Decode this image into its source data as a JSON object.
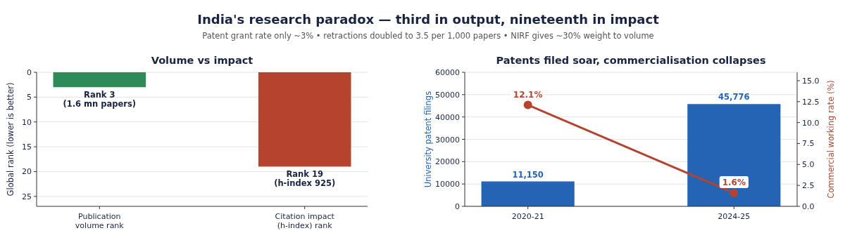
{
  "chart_data": [
    {
      "type": "other",
      "title": "India's research paradox — third in output, nineteenth in impact",
      "subtitle": "Patent grant rate only ~3%  •  retractions doubled to 3.5 per 1,000 papers  •  NIRF gives ~30% weight to volume"
    },
    {
      "type": "bar",
      "title": "Volume vs impact",
      "ylabel": "Global rank (lower is better)",
      "categories": [
        "Publication\nvolume rank",
        "Citation impact\n(h-index) rank"
      ],
      "values": [
        3,
        19
      ],
      "colors": [
        "#2e8b57",
        "#b5442e"
      ],
      "value_labels": [
        "Rank 3\n(1.6 mn papers)",
        "Rank 19\n(h-index 925)"
      ],
      "ylim": [
        27,
        0
      ],
      "yticks": [
        0,
        5,
        10,
        15,
        20,
        25
      ],
      "grid": "y"
    },
    {
      "type": "bar",
      "title": "Patents filed soar, commercialisation collapses",
      "ylabel": "University patent filings",
      "y2label": "Commercial working rate (%)",
      "categories": [
        "2020-21",
        "2024-25"
      ],
      "series": [
        {
          "type": "bar",
          "color": "#2563b5",
          "values": [
            11150,
            45776
          ],
          "value_labels": [
            "11,150",
            "45,776"
          ]
        },
        {
          "type": "line",
          "axis": "y2",
          "color": "#b5442e",
          "values": [
            12.1,
            1.6
          ],
          "value_labels": [
            "12.1%",
            "1.6%"
          ],
          "marker": "circle"
        }
      ],
      "ylim": [
        0,
        60000
      ],
      "yticks": [
        0,
        10000,
        20000,
        30000,
        40000,
        50000,
        60000
      ],
      "y2lim": [
        0,
        16
      ],
      "y2ticks": [
        {
          "value": 0,
          "label": "0.0"
        },
        {
          "value": 2.5,
          "label": "2.5"
        },
        {
          "value": 5,
          "label": "5.0"
        },
        {
          "value": 7.5,
          "label": "7.5"
        },
        {
          "value": 10,
          "label": "10.0"
        },
        {
          "value": 12.5,
          "label": "12.5"
        },
        {
          "value": 15,
          "label": "15.0"
        }
      ],
      "grid": "y"
    }
  ]
}
